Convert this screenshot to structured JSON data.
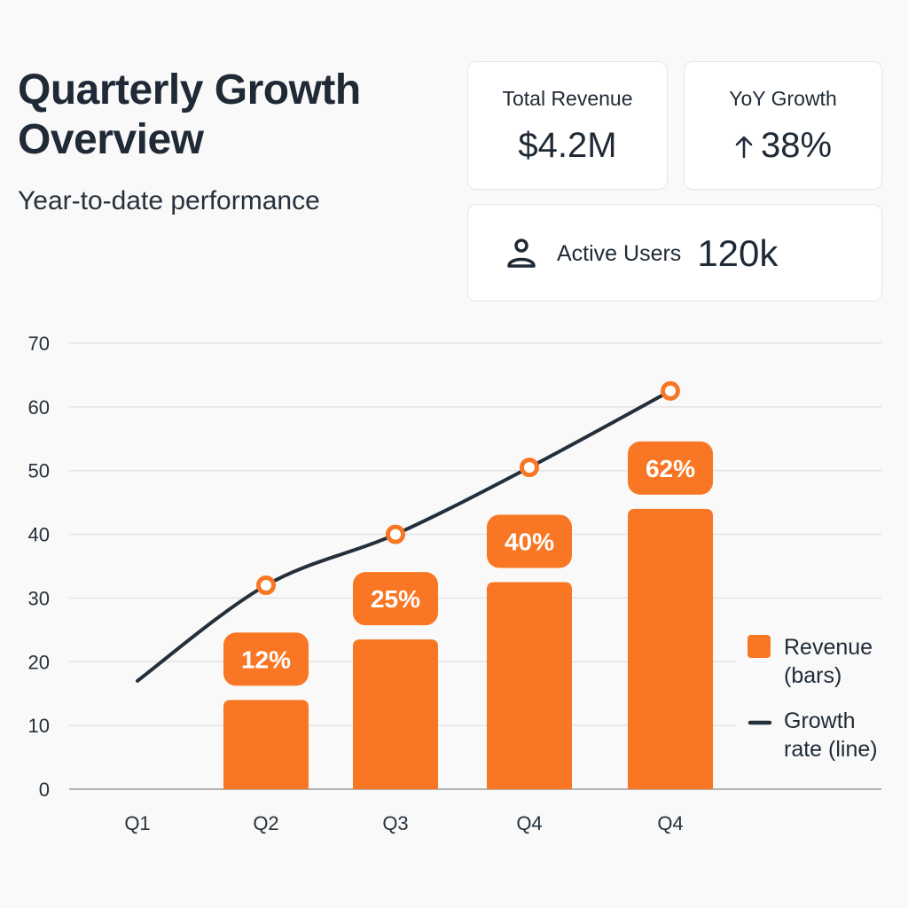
{
  "header": {
    "title_line1": "Quarterly Growth",
    "title_line2": "Overview",
    "subtitle": "Year-to-date performance"
  },
  "kpis": {
    "total_revenue": {
      "label": "Total Revenue",
      "value": "$4.2M"
    },
    "yoy_growth": {
      "label": "YoY Growth",
      "value": "38%",
      "icon": "arrow-up-icon"
    },
    "active_users": {
      "label": "Active Users",
      "value": "120k",
      "icon": "user-icon"
    }
  },
  "colors": {
    "accent": "#f97724",
    "line": "#232f3b",
    "grid": "#e4e4e4",
    "axis": "#9a9a9a",
    "text": "#1f2a36"
  },
  "chart_data": {
    "type": "bar",
    "title": "",
    "xlabel": "",
    "ylabel": "",
    "categories": [
      "Q1",
      "Q2",
      "Q3",
      "Q4",
      "Q4"
    ],
    "ylim": [
      0,
      70
    ],
    "yticks": [
      0,
      10,
      20,
      30,
      40,
      50,
      60,
      70
    ],
    "grid": true,
    "legend_position": "right",
    "series": [
      {
        "name": "Revenue (bars)",
        "legend_lines": [
          "Revenue",
          "(bars)"
        ],
        "type": "bar",
        "values": [
          null,
          14,
          23.5,
          32.5,
          44
        ],
        "data_labels": [
          null,
          "12%",
          "25%",
          "40%",
          "62%"
        ]
      },
      {
        "name": "Growth rate (line)",
        "legend_lines": [
          "Growth",
          "rate (line)"
        ],
        "type": "line",
        "values": [
          17,
          32,
          40,
          50.5,
          62.5
        ],
        "markers": [
          false,
          true,
          true,
          true,
          true
        ]
      }
    ]
  }
}
